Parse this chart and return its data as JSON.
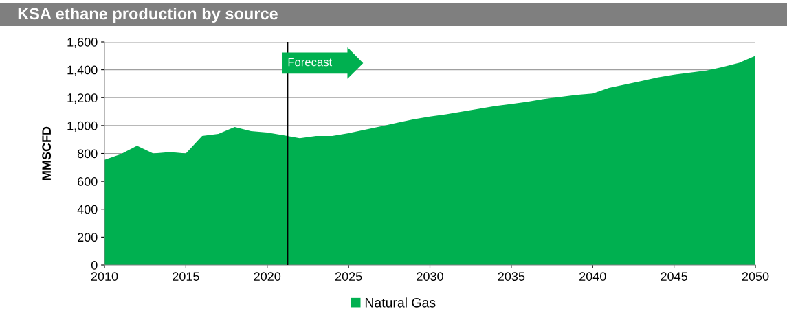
{
  "chart_data": {
    "type": "area",
    "title": "KSA ethane production by source",
    "ylabel": "MMSCFD",
    "x": [
      2010,
      2011,
      2012,
      2013,
      2014,
      2015,
      2016,
      2017,
      2018,
      2019,
      2020,
      2021,
      2022,
      2023,
      2024,
      2025,
      2026,
      2027,
      2028,
      2029,
      2030,
      2031,
      2032,
      2033,
      2034,
      2035,
      2036,
      2037,
      2038,
      2039,
      2040,
      2041,
      2042,
      2043,
      2044,
      2045,
      2046,
      2047,
      2048,
      2049,
      2050
    ],
    "series": [
      {
        "name": "Natural Gas",
        "color": "#00b050",
        "values": [
          755,
          795,
          855,
          800,
          810,
          800,
          925,
          940,
          990,
          960,
          950,
          930,
          910,
          925,
          925,
          945,
          970,
          995,
          1020,
          1045,
          1065,
          1080,
          1100,
          1120,
          1140,
          1155,
          1170,
          1190,
          1205,
          1220,
          1230,
          1270,
          1295,
          1320,
          1345,
          1365,
          1380,
          1395,
          1420,
          1450,
          1500
        ]
      }
    ],
    "xlim": [
      2010,
      2050
    ],
    "xticks": [
      2010,
      2015,
      2020,
      2025,
      2030,
      2035,
      2040,
      2045,
      2050
    ],
    "ylim": [
      0,
      1600
    ],
    "yticks": [
      0,
      200,
      400,
      600,
      800,
      {
        "value": 1000,
        "label": "1,000"
      },
      {
        "value": 1200,
        "label": "1,200"
      },
      {
        "value": 1400,
        "label": "1,400"
      },
      {
        "value": 1600,
        "label": "1,600"
      }
    ],
    "ref_lines": [
      {
        "axis": "x",
        "value": 2021.25,
        "label": "Forecast",
        "color": "#000000"
      }
    ],
    "grid": "y",
    "legend": "bottom"
  }
}
